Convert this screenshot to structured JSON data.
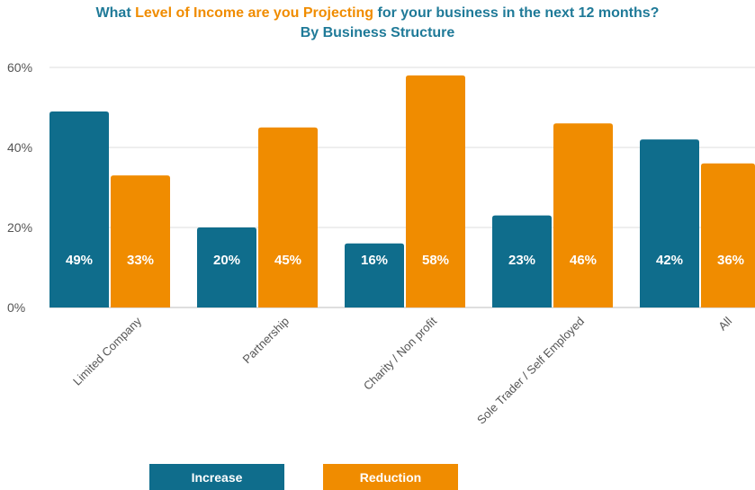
{
  "title": {
    "part1": "What ",
    "highlight": "Level of Income are you Projecting",
    "part2": " for your business in the next 12 months?",
    "subtitle": "By Business Structure"
  },
  "colors": {
    "increase": "#0f6d8c",
    "reduction": "#f08c00",
    "title": "#1f7a98",
    "grid": "#dcdcdc",
    "axis_text": "#555555"
  },
  "chart_data": {
    "type": "bar",
    "title": "What Level of Income are you Projecting for your business in the next 12 months? By Business Structure",
    "categories": [
      "Limited Company",
      "Partnership",
      "Charity / Non profit",
      "Sole Trader / Self Employed",
      "All"
    ],
    "series": [
      {
        "name": "Increase",
        "values": [
          49,
          20,
          16,
          23,
          42
        ],
        "labels": [
          "49%",
          "20%",
          "16%",
          "23%",
          "42%"
        ]
      },
      {
        "name": "Reduction",
        "values": [
          33,
          45,
          58,
          46,
          36
        ],
        "labels": [
          "33%",
          "45%",
          "58%",
          "46%",
          "36%"
        ]
      }
    ],
    "yticks": [
      "0%",
      "20%",
      "40%",
      "60%"
    ],
    "ylim": [
      0,
      60
    ],
    "grid": true,
    "legend_position": "bottom"
  },
  "legend": {
    "increase": "Increase",
    "reduction": "Reduction"
  }
}
